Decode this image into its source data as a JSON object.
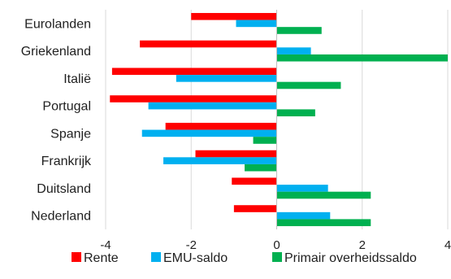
{
  "chart_data": {
    "type": "bar",
    "orientation": "horizontal",
    "categories": [
      "Eurolanden",
      "Griekenland",
      "Italië",
      "Portugal",
      "Spanje",
      "Frankrijk",
      "Duitsland",
      "Nederland"
    ],
    "series": [
      {
        "name": "Rente",
        "color": "#ff0000",
        "values": [
          -2.0,
          -3.2,
          -3.85,
          -3.9,
          -2.6,
          -1.9,
          -1.05,
          -1.0
        ]
      },
      {
        "name": "EMU-saldo",
        "color": "#00b0f0",
        "values": [
          -0.95,
          0.8,
          -2.35,
          -3.0,
          -3.15,
          -2.65,
          1.2,
          1.25
        ]
      },
      {
        "name": "Primair overheidssaldo",
        "color": "#00b050",
        "values": [
          1.05,
          4.0,
          1.5,
          0.9,
          -0.55,
          -0.75,
          2.2,
          2.2
        ]
      }
    ],
    "xlim": [
      -4,
      4
    ],
    "xticks": [
      -4,
      -2,
      0,
      2,
      4
    ],
    "grid": true,
    "legend_position": "bottom"
  }
}
